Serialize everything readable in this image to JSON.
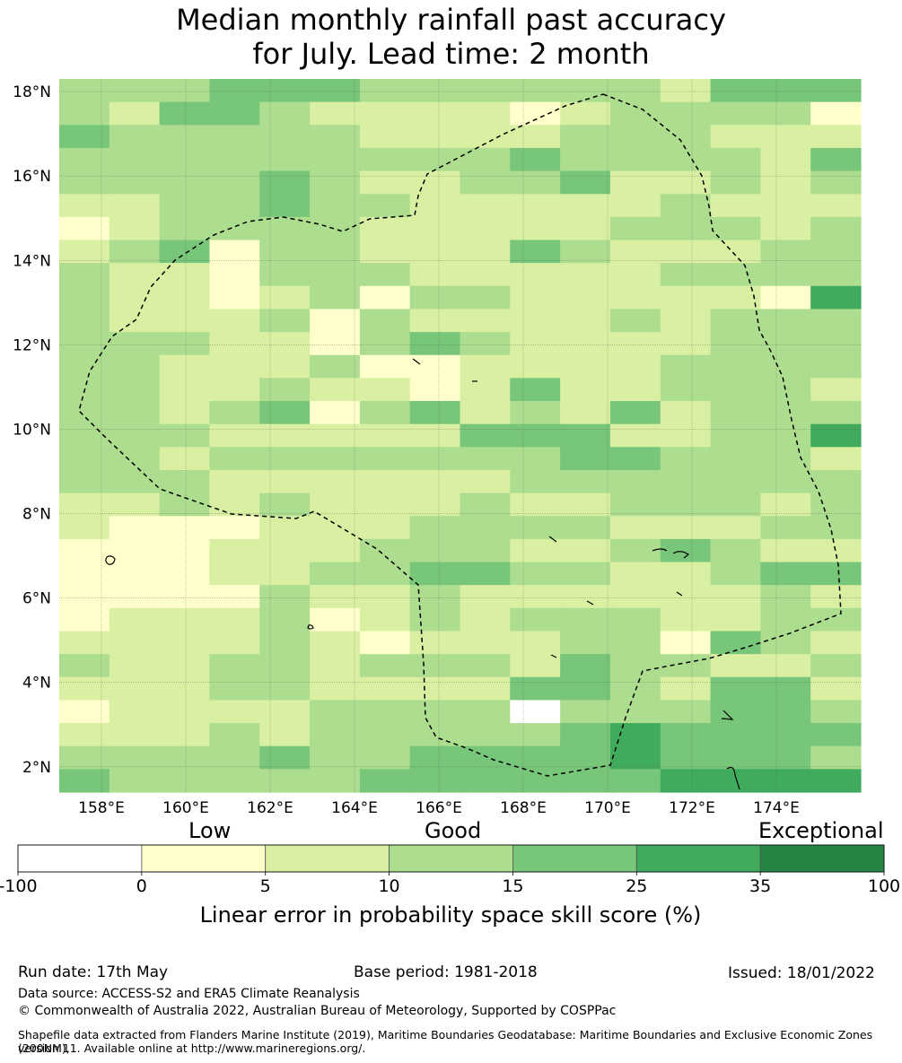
{
  "title": {
    "line1": "Median monthly rainfall past accuracy",
    "line2": "for July. Lead time: 2 month"
  },
  "map": {
    "lat_labels": [
      "18°N",
      "16°N",
      "14°N",
      "12°N",
      "10°N",
      "8°N",
      "6°N",
      "4°N",
      "2°N"
    ],
    "lon_labels": [
      "158°E",
      "160°E",
      "162°E",
      "164°E",
      "166°E",
      "168°E",
      "170°E",
      "172°E",
      "174°E"
    ],
    "lon_range": [
      157,
      176
    ],
    "lat_range": [
      1.4,
      18.3
    ],
    "grid_rows": [
      "3334443333332444",
      "3244322221233331",
      "4333332222333222",
      "3333333334333324",
      "3333432233422323",
      "2233433222223222",
      "1233332222233323",
      "2341332224322233",
      "3221333222223333",
      "3221231332222215",
      "3222313222232333",
      "3332213432222333",
      "3322231122223333",
      "3322322124223332",
      "3323413423242333",
      "3332222244422335",
      "3323333333443332",
      "3332222223333333",
      "2232322232233323",
      "2111222333322233",
      "1112223332234322",
      "1112233443322344",
      "1111322322222232",
      "1222312323332233",
      "2222321222331432",
      "3223323332433223",
      "2223322224432442",
      "1222233330333443",
      "2223233333454444",
      "3333433444454443",
      "4333334444445555"
    ],
    "color_classes": [
      "#ffffff",
      "#ffffcc",
      "#d9f0a3",
      "#addd8e",
      "#78c679",
      "#41ab5d",
      "#238443"
    ]
  },
  "colorbar": {
    "category_labels": [
      "Low",
      "Good",
      "Exceptional"
    ],
    "tick_labels": [
      "-100",
      "0",
      "5",
      "10",
      "15",
      "25",
      "35",
      "100"
    ],
    "colors": [
      "#ffffff",
      "#ffffcc",
      "#d9f0a3",
      "#addd8e",
      "#78c679",
      "#41ab5d",
      "#238443"
    ],
    "axis_label": "Linear error in probability space skill score (%)"
  },
  "footer": {
    "run_date": "Run date: 17th May",
    "base_period": "Base period: 1981-2018",
    "issued": "Issued: 18/01/2022",
    "data_source": "Data source: ACCESS-S2 and ERA5 Climate Reanalysis",
    "copyright": "© Commonwealth of Australia 2022, Australian Bureau of Meteorology, Supported by COSPPac",
    "shapefile_line1": "Shapefile data extracted from Flanders Marine Institute (2019), Maritime Boundaries Geodatabase: Maritime Boundaries and Exclusive Economic Zones (200NM),",
    "shapefile_line2": "version 11. Available online at http://www.marineregions.org/."
  }
}
